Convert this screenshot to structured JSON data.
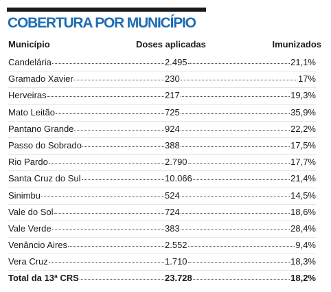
{
  "header": {
    "title": "COBERTURA POR MUNICÍPIO"
  },
  "table": {
    "columns": [
      "Município",
      "Doses aplicadas",
      "Imunizados"
    ],
    "rows": [
      [
        "Candelária",
        "2.495",
        "21,1%"
      ],
      [
        "Gramado Xavier",
        "230",
        "17%"
      ],
      [
        "Herveiras",
        "217",
        "19,3%"
      ],
      [
        "Mato Leitão",
        "725",
        "35,9%"
      ],
      [
        "Pantano Grande",
        "924",
        "22,2%"
      ],
      [
        "Passo do Sobrado",
        "388",
        "17,5%"
      ],
      [
        "Rio Pardo",
        "2.790",
        "17,7%"
      ],
      [
        "Santa Cruz do Sul",
        "10.066",
        "21,4%"
      ],
      [
        "Sinimbu",
        "524",
        "14,5%"
      ],
      [
        "Vale do Sol",
        "724",
        "18,6%"
      ],
      [
        "Vale Verde",
        "383",
        "28,4%"
      ],
      [
        "Venâncio Aires",
        "2.552",
        "9,4%"
      ],
      [
        "Vera Cruz",
        "1.710",
        "18,3%"
      ]
    ],
    "total": [
      "Total da 13ª CRS",
      "23.728",
      "18,2%"
    ]
  }
}
